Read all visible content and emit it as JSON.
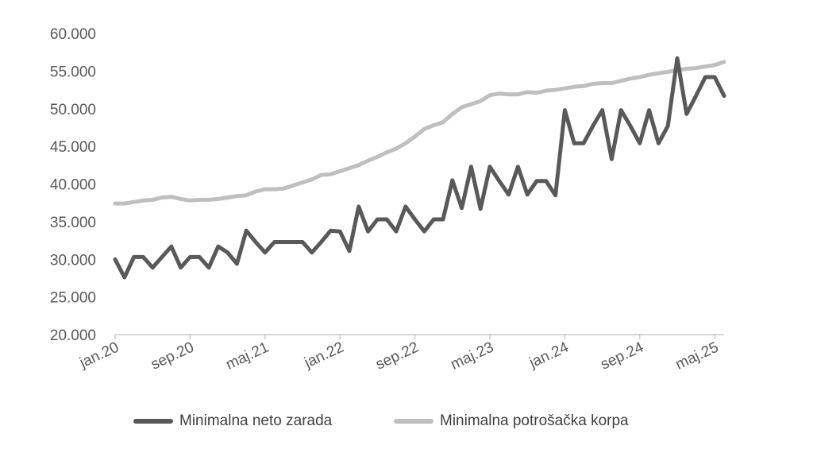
{
  "chart_data": {
    "type": "line",
    "title": "",
    "xlabel": "",
    "ylabel": "",
    "ylim": [
      20000,
      60000
    ],
    "yticks": [
      "20.000",
      "25.000",
      "30.000",
      "35.000",
      "40.000",
      "45.000",
      "50.000",
      "55.000",
      "60.000"
    ],
    "ytick_values": [
      20000,
      25000,
      30000,
      35000,
      40000,
      45000,
      50000,
      55000,
      60000
    ],
    "xticks": [
      "jan.20",
      "sep.20",
      "maj.21",
      "jan.22",
      "sep.22",
      "maj.23",
      "jan.24",
      "sep.24",
      "maj.25"
    ],
    "xtick_index": [
      0,
      8,
      16,
      24,
      32,
      40,
      48,
      56,
      64
    ],
    "x": [
      "jan.20",
      "feb.20",
      "mar.20",
      "apr.20",
      "maj.20",
      "jun.20",
      "jul.20",
      "avg.20",
      "sep.20",
      "okt.20",
      "nov.20",
      "dec.20",
      "jan.21",
      "feb.21",
      "mar.21",
      "apr.21",
      "maj.21",
      "jun.21",
      "jul.21",
      "avg.21",
      "sep.21",
      "okt.21",
      "nov.21",
      "dec.21",
      "jan.22",
      "feb.22",
      "mar.22",
      "apr.22",
      "maj.22",
      "jun.22",
      "jul.22",
      "avg.22",
      "sep.22",
      "okt.22",
      "nov.22",
      "dec.22",
      "jan.23",
      "feb.23",
      "mar.23",
      "apr.23",
      "maj.23",
      "jun.23",
      "jul.23",
      "avg.23",
      "sep.23",
      "okt.23",
      "nov.23",
      "dec.23",
      "jan.24",
      "feb.24",
      "mar.24",
      "apr.24",
      "maj.24",
      "jun.24",
      "jul.24",
      "avg.24",
      "sep.24",
      "okt.24",
      "nov.24",
      "dec.24",
      "jan.25",
      "feb.25",
      "mar.25",
      "apr.25",
      "maj.25",
      "jun.25"
    ],
    "series": [
      {
        "name": "Minimalna neto zarada",
        "color": "#595959",
        "values": [
          30000,
          27600,
          30300,
          30300,
          28900,
          30300,
          31700,
          28900,
          30300,
          30300,
          28900,
          31700,
          30900,
          29400,
          33800,
          32300,
          30900,
          32300,
          32300,
          32300,
          32300,
          30900,
          32300,
          33800,
          33700,
          31100,
          37000,
          33700,
          35300,
          35300,
          33700,
          37000,
          35300,
          33700,
          35300,
          35300,
          40500,
          36800,
          42300,
          36700,
          42300,
          40400,
          38600,
          42300,
          38600,
          40400,
          40400,
          38500,
          49800,
          45400,
          45400,
          47700,
          49800,
          43300,
          49800,
          47700,
          45400,
          49800,
          45400,
          47700,
          56700,
          49300,
          51700,
          54200,
          54200,
          51700
        ]
      },
      {
        "name": "Minimalna potrošačka korpa",
        "color": "#bfbfbf",
        "values": [
          37400,
          37400,
          37600,
          37800,
          37900,
          38200,
          38300,
          38000,
          37800,
          37900,
          37900,
          38000,
          38200,
          38400,
          38500,
          39000,
          39300,
          39300,
          39400,
          39800,
          40200,
          40600,
          41200,
          41300,
          41700,
          42100,
          42500,
          43100,
          43600,
          44200,
          44700,
          45400,
          46300,
          47300,
          47800,
          48200,
          49300,
          50200,
          50600,
          51000,
          51800,
          52000,
          51900,
          51900,
          52200,
          52100,
          52400,
          52500,
          52700,
          52900,
          53000,
          53300,
          53400,
          53400,
          53700,
          54000,
          54200,
          54500,
          54700,
          54900,
          55100,
          55300,
          55400,
          55600,
          55800,
          56200
        ]
      }
    ],
    "grid": false,
    "legend_position": "bottom"
  }
}
